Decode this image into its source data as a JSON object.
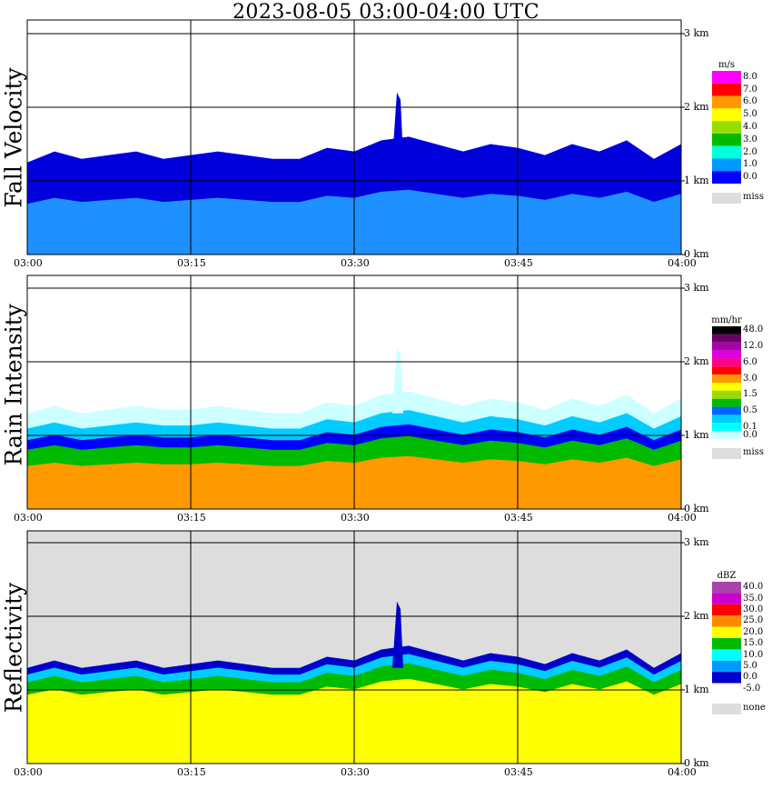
{
  "title": "2023-08-05   03:00-04:00 UTC",
  "panels": [
    {
      "label": "Fall Velocity",
      "unit": "m/s",
      "colorbar": [
        {
          "label": "8.0",
          "color": "#ff00ff"
        },
        {
          "label": "7.0",
          "color": "#ff0000"
        },
        {
          "label": "6.0",
          "color": "#ff9900"
        },
        {
          "label": "5.0",
          "color": "#ffff00"
        },
        {
          "label": "4.0",
          "color": "#99dd00"
        },
        {
          "label": "3.0",
          "color": "#00bb00"
        },
        {
          "label": "2.0",
          "color": "#00ffdd"
        },
        {
          "label": "1.0",
          "color": "#0099ff"
        },
        {
          "label": "0.0",
          "color": "#0000ff"
        }
      ],
      "missing": {
        "label": "miss",
        "color": "#dddddd"
      },
      "background": "#ffffff",
      "top_km": [
        1.25,
        1.4,
        1.3,
        1.35,
        1.4,
        1.3,
        1.35,
        1.4,
        1.35,
        1.3,
        1.3,
        1.45,
        1.4,
        1.55,
        1.6,
        1.5,
        1.4,
        1.5,
        1.45,
        1.35,
        1.5,
        1.4,
        1.55,
        1.3,
        1.5
      ],
      "cloud_layers": [
        {
          "frac": 0.55,
          "color": "#1e90ff"
        },
        {
          "frac": 1.0,
          "color": "#0000dd"
        }
      ]
    },
    {
      "label": "Rain Intensity",
      "unit": "mm/hr",
      "colorbar": [
        {
          "label": "48.0",
          "color": "#000000"
        },
        {
          "label": "",
          "color": "#660066"
        },
        {
          "label": "12.0",
          "color": "#aa00aa"
        },
        {
          "label": "",
          "color": "#dd00dd"
        },
        {
          "label": "6.0",
          "color": "#ff0088"
        },
        {
          "label": "",
          "color": "#ff0000"
        },
        {
          "label": "3.0",
          "color": "#ff9900"
        },
        {
          "label": "",
          "color": "#ffff00"
        },
        {
          "label": "1.5",
          "color": "#99dd00"
        },
        {
          "label": "",
          "color": "#00bb00"
        },
        {
          "label": "0.5",
          "color": "#0066ff"
        },
        {
          "label": "",
          "color": "#00ccff"
        },
        {
          "label": "0.1",
          "color": "#00ffff"
        },
        {
          "label": "0.0",
          "color": "#ccffff"
        }
      ],
      "missing": {
        "label": "miss",
        "color": "#dddddd"
      },
      "background": "#ffffff",
      "top_km": [
        1.3,
        1.4,
        1.3,
        1.35,
        1.4,
        1.35,
        1.35,
        1.4,
        1.35,
        1.3,
        1.3,
        1.45,
        1.4,
        1.55,
        1.6,
        1.5,
        1.4,
        1.5,
        1.45,
        1.35,
        1.5,
        1.4,
        1.55,
        1.3,
        1.5
      ],
      "cloud_layers": [
        {
          "frac": 0.45,
          "color": "#ff9900"
        },
        {
          "frac": 0.62,
          "color": "#00bb00"
        },
        {
          "frac": 0.72,
          "color": "#0000ff"
        },
        {
          "frac": 0.84,
          "color": "#00ccff"
        },
        {
          "frac": 1.0,
          "color": "#ccffff"
        }
      ]
    },
    {
      "label": "Reflectivity",
      "unit": "dBZ",
      "colorbar": [
        {
          "label": "40.0",
          "color": "#aa44aa"
        },
        {
          "label": "35.0",
          "color": "#cc00cc"
        },
        {
          "label": "30.0",
          "color": "#ff0000"
        },
        {
          "label": "25.0",
          "color": "#ff8800"
        },
        {
          "label": "20.0",
          "color": "#ffff00"
        },
        {
          "label": "15.0",
          "color": "#00bb00"
        },
        {
          "label": "10.0",
          "color": "#00ffff"
        },
        {
          "label": "5.0",
          "color": "#0099ff"
        },
        {
          "label": "0.0",
          "color": "#0000cc"
        },
        {
          "label": "-5.0",
          "color": "#ffffff"
        }
      ],
      "missing": {
        "label": "none",
        "color": "#dddddd"
      },
      "background": "#dddddd",
      "top_km": [
        1.3,
        1.4,
        1.3,
        1.35,
        1.4,
        1.3,
        1.35,
        1.4,
        1.35,
        1.3,
        1.3,
        1.45,
        1.4,
        1.55,
        1.6,
        1.5,
        1.4,
        1.5,
        1.45,
        1.35,
        1.5,
        1.4,
        1.55,
        1.3,
        1.5
      ],
      "cloud_layers": [
        {
          "frac": 0.72,
          "color": "#ffff00"
        },
        {
          "frac": 0.85,
          "color": "#00bb00"
        },
        {
          "frac": 0.93,
          "color": "#00ccff"
        },
        {
          "frac": 1.0,
          "color": "#0000cc"
        }
      ]
    }
  ],
  "x_ticks": [
    "03:00",
    "03:15",
    "03:30",
    "03:45",
    "04:00"
  ],
  "y_ticks": [
    "3 km",
    "2 km",
    "1 km",
    "0 km"
  ],
  "y_range_km": [
    0,
    3
  ],
  "chart_data": {
    "type": "heatmap",
    "title": "2023-08-05   03:00-04:00 UTC",
    "x": [
      "03:00",
      "03:15",
      "03:30",
      "03:45",
      "04:00"
    ],
    "y": [
      "0 km",
      "1 km",
      "2 km",
      "3 km"
    ],
    "series": [
      {
        "name": "Fall Velocity",
        "unit": "m/s",
        "approx_cloud_top_km": 1.4
      },
      {
        "name": "Rain Intensity",
        "unit": "mm/hr",
        "approx_cloud_top_km": 1.4
      },
      {
        "name": "Reflectivity",
        "unit": "dBZ",
        "approx_cloud_top_km": 1.4
      }
    ],
    "grid": true
  }
}
